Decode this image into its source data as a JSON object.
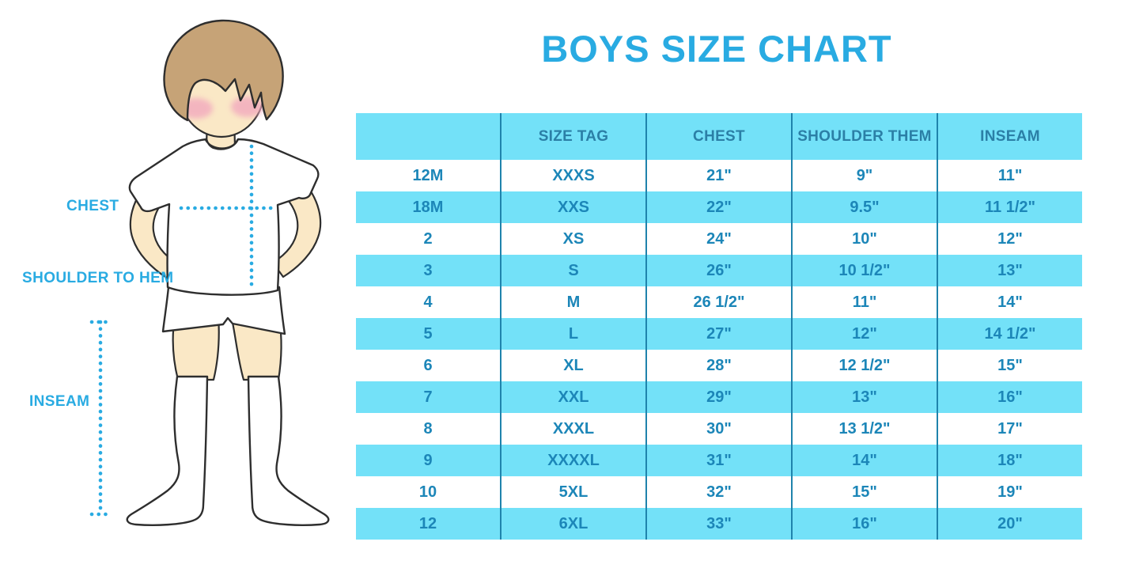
{
  "title": "BOYS SIZE CHART",
  "figure": {
    "chest_label": "CHEST",
    "shoulder_to_hem_label": "SHOULDER TO HEM",
    "inseam_label": "INSEAM",
    "illustration": "boy-in-white-tshirt-shorts-and-knee-socks-with-dotted-measurement-lines"
  },
  "chart_data": {
    "type": "table",
    "title": "BOYS SIZE CHART",
    "columns": [
      "",
      "SIZE TAG",
      "CHEST",
      "SHOULDER THEM",
      "INSEAM"
    ],
    "rows": [
      [
        "12M",
        "XXXS",
        "21\"",
        "9\"",
        "11\""
      ],
      [
        "18M",
        "XXS",
        "22\"",
        "9.5\"",
        "11 1/2\""
      ],
      [
        "2",
        "XS",
        "24\"",
        "10\"",
        "12\""
      ],
      [
        "3",
        "S",
        "26\"",
        "10 1/2\"",
        "13\""
      ],
      [
        "4",
        "M",
        "26 1/2\"",
        "11\"",
        "14\""
      ],
      [
        "5",
        "L",
        "27\"",
        "12\"",
        "14 1/2\""
      ],
      [
        "6",
        "XL",
        "28\"",
        "12 1/2\"",
        "15\""
      ],
      [
        "7",
        "XXL",
        "29\"",
        "13\"",
        "16\""
      ],
      [
        "8",
        "XXXL",
        "30\"",
        "13 1/2\"",
        "17\""
      ],
      [
        "9",
        "XXXXL",
        "31\"",
        "14\"",
        "18\""
      ],
      [
        "10",
        "5XL",
        "32\"",
        "15\"",
        "19\""
      ],
      [
        "12",
        "6XL",
        "33\"",
        "16\"",
        "20\""
      ]
    ],
    "layout": {
      "header_background": "#73E1F8",
      "row_alternating_backgrounds": [
        "#FFFFFF",
        "#73E1F8"
      ],
      "column_dividers": true,
      "horizontal_gridlines": false
    }
  },
  "colors": {
    "title_blue": "#29ABE2",
    "band_cyan": "#73E1F8",
    "divider_teal": "#1F83AC",
    "header_text": "#2B7FA6",
    "cell_text": "#1C86B8",
    "label_blue": "#29ABE2",
    "dot_blue": "#29ABE2",
    "skin": "#FAE8C6",
    "hair": "#C6A377",
    "blush": "#F2A9BE",
    "outline": "#2E2E2E"
  }
}
